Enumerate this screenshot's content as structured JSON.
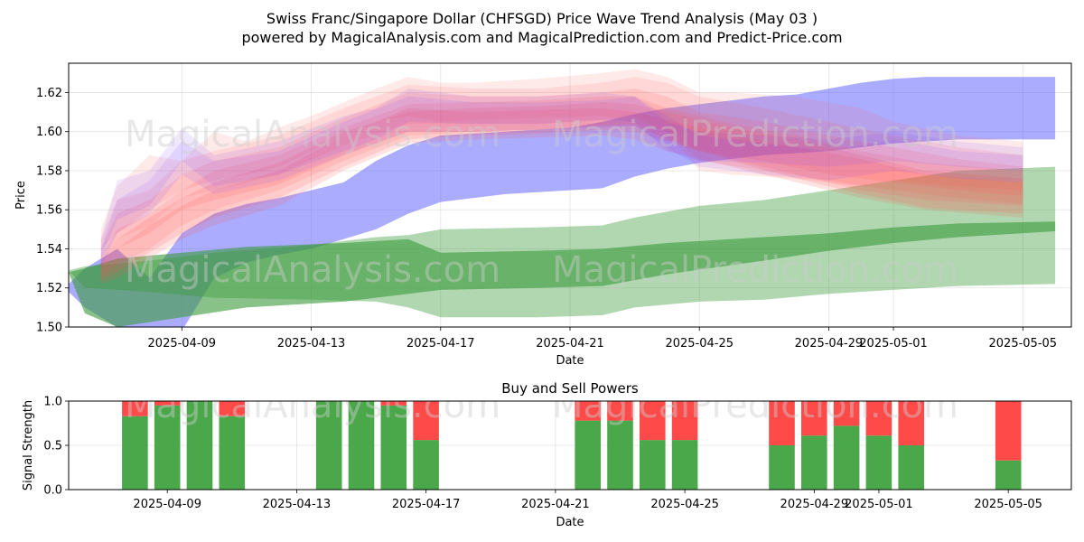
{
  "figure": {
    "title_line1": "Swiss Franc/Singapore Dollar (CHFSGD) Price Wave Trend Analysis (May 03 )",
    "title_line2": "powered by MagicalAnalysis.com and MagicalPrediction.com and Predict-Price.com",
    "watermarks": [
      "MagicalAnalysis.com",
      "MagicalPrediction.com"
    ]
  },
  "chart_data": [
    {
      "type": "area",
      "xlabel": "Date",
      "ylabel": "Price",
      "ylim": [
        1.5,
        1.635
      ],
      "xlim": [
        "2025-04-05T12:00",
        "2025-05-06T12:00"
      ],
      "x_ticks": [
        "2025-04-09",
        "2025-04-13",
        "2025-04-17",
        "2025-04-21",
        "2025-04-25",
        "2025-04-29",
        "2025-05-01",
        "2025-05-05"
      ],
      "y_ticks": [
        1.5,
        1.52,
        1.54,
        1.56,
        1.58,
        1.6,
        1.62
      ],
      "grid": true,
      "colors": {
        "blue": "#5a5aff",
        "green": "#3a9a3a",
        "red": "#ff5050"
      },
      "series": [
        {
          "color": "blue",
          "opacity": 0.5,
          "x": [
            "2025-04-05T12:00",
            "2025-04-06",
            "2025-04-07",
            "2025-04-08",
            "2025-04-09",
            "2025-04-10",
            "2025-04-11",
            "2025-04-12",
            "2025-04-13",
            "2025-04-14",
            "2025-04-15",
            "2025-04-16",
            "2025-04-17",
            "2025-04-18",
            "2025-04-19",
            "2025-04-20",
            "2025-04-21",
            "2025-04-22",
            "2025-04-23",
            "2025-04-24",
            "2025-04-25",
            "2025-04-26",
            "2025-04-27",
            "2025-04-28",
            "2025-04-29",
            "2025-04-30",
            "2025-05-01",
            "2025-05-02",
            "2025-05-03",
            "2025-05-04",
            "2025-05-05",
            "2025-05-06"
          ],
          "upper": [
            1.522,
            1.53,
            1.54,
            1.525,
            1.548,
            1.558,
            1.563,
            1.566,
            1.57,
            1.574,
            1.585,
            1.593,
            1.598,
            1.599,
            1.6,
            1.601,
            1.602,
            1.605,
            1.609,
            1.612,
            1.614,
            1.616,
            1.618,
            1.619,
            1.622,
            1.625,
            1.627,
            1.628,
            1.628,
            1.628,
            1.628,
            1.628
          ],
          "lower": [
            1.518,
            1.51,
            1.5,
            1.5,
            1.498,
            1.525,
            1.533,
            1.537,
            1.54,
            1.545,
            1.55,
            1.558,
            1.564,
            1.566,
            1.568,
            1.569,
            1.57,
            1.571,
            1.577,
            1.581,
            1.584,
            1.586,
            1.588,
            1.589,
            1.59,
            1.592,
            1.594,
            1.595,
            1.596,
            1.596,
            1.596,
            1.596
          ]
        },
        {
          "color": "green",
          "opacity": 0.4,
          "x": [
            "2025-04-05T12:00",
            "2025-04-06",
            "2025-04-08",
            "2025-04-10",
            "2025-04-13",
            "2025-04-15",
            "2025-04-16",
            "2025-04-17",
            "2025-04-20",
            "2025-04-22",
            "2025-04-23",
            "2025-04-25",
            "2025-04-27",
            "2025-04-29",
            "2025-05-01",
            "2025-05-03",
            "2025-05-06"
          ],
          "upper": [
            1.529,
            1.531,
            1.534,
            1.538,
            1.542,
            1.546,
            1.547,
            1.55,
            1.551,
            1.552,
            1.556,
            1.562,
            1.565,
            1.57,
            1.575,
            1.58,
            1.582
          ],
          "lower": [
            1.529,
            1.52,
            1.518,
            1.515,
            1.514,
            1.513,
            1.51,
            1.505,
            1.505,
            1.506,
            1.51,
            1.513,
            1.514,
            1.517,
            1.519,
            1.521,
            1.522
          ]
        },
        {
          "color": "green",
          "opacity": 0.6,
          "x": [
            "2025-04-05T12:00",
            "2025-04-06",
            "2025-04-07",
            "2025-04-09",
            "2025-04-11",
            "2025-04-14",
            "2025-04-16",
            "2025-04-17",
            "2025-04-20",
            "2025-04-22",
            "2025-04-24",
            "2025-04-27",
            "2025-04-29",
            "2025-05-01",
            "2025-05-03",
            "2025-05-06"
          ],
          "upper": [
            1.528,
            1.53,
            1.535,
            1.538,
            1.541,
            1.543,
            1.545,
            1.538,
            1.539,
            1.54,
            1.543,
            1.546,
            1.548,
            1.551,
            1.553,
            1.554
          ],
          "lower": [
            1.528,
            1.507,
            1.5,
            1.505,
            1.51,
            1.513,
            1.517,
            1.519,
            1.52,
            1.521,
            1.527,
            1.534,
            1.539,
            1.543,
            1.546,
            1.549
          ]
        }
      ],
      "red_bands": [
        {
          "opacity": 0.12,
          "x": [
            "2025-04-06T12:00",
            "2025-04-07",
            "2025-04-08",
            "2025-04-09",
            "2025-04-10",
            "2025-04-11",
            "2025-04-12",
            "2025-04-13",
            "2025-04-14",
            "2025-04-15",
            "2025-04-16",
            "2025-04-17",
            "2025-04-18",
            "2025-04-20",
            "2025-04-22",
            "2025-04-23",
            "2025-04-24",
            "2025-04-25",
            "2025-04-26",
            "2025-04-28",
            "2025-04-30",
            "2025-05-01",
            "2025-05-03",
            "2025-05-05"
          ],
          "upper": [
            1.55,
            1.572,
            1.588,
            1.585,
            1.6,
            1.595,
            1.602,
            1.608,
            1.615,
            1.622,
            1.628,
            1.625,
            1.625,
            1.627,
            1.63,
            1.632,
            1.628,
            1.62,
            1.62,
            1.618,
            1.612,
            1.605,
            1.598,
            1.595
          ],
          "lower": [
            1.54,
            1.548,
            1.56,
            1.57,
            1.575,
            1.578,
            1.582,
            1.59,
            1.598,
            1.605,
            1.608,
            1.605,
            1.606,
            1.607,
            1.608,
            1.605,
            1.6,
            1.58,
            1.578,
            1.576,
            1.572,
            1.575,
            1.572,
            1.57
          ]
        },
        {
          "opacity": 0.12,
          "x": [
            "2025-04-06T12:00",
            "2025-04-07",
            "2025-04-08",
            "2025-04-09",
            "2025-04-10",
            "2025-04-12",
            "2025-04-14",
            "2025-04-16",
            "2025-04-18",
            "2025-04-20",
            "2025-04-22",
            "2025-04-23",
            "2025-04-24",
            "2025-04-25",
            "2025-04-27",
            "2025-04-29",
            "2025-05-01",
            "2025-05-03",
            "2025-05-05"
          ],
          "upper": [
            1.545,
            1.565,
            1.57,
            1.585,
            1.59,
            1.598,
            1.612,
            1.624,
            1.622,
            1.622,
            1.625,
            1.628,
            1.625,
            1.618,
            1.612,
            1.605,
            1.598,
            1.592,
            1.588
          ],
          "lower": [
            1.535,
            1.545,
            1.552,
            1.566,
            1.57,
            1.578,
            1.593,
            1.604,
            1.604,
            1.604,
            1.606,
            1.608,
            1.6,
            1.585,
            1.58,
            1.575,
            1.57,
            1.566,
            1.563
          ]
        },
        {
          "opacity": 0.14,
          "x": [
            "2025-04-06T12:00",
            "2025-04-07",
            "2025-04-08",
            "2025-04-09",
            "2025-04-10",
            "2025-04-12",
            "2025-04-14",
            "2025-04-16",
            "2025-04-18",
            "2025-04-20",
            "2025-04-22",
            "2025-04-23",
            "2025-04-24",
            "2025-04-25",
            "2025-04-27",
            "2025-04-29",
            "2025-05-01",
            "2025-05-03",
            "2025-05-05"
          ],
          "upper": [
            1.54,
            1.558,
            1.565,
            1.578,
            1.585,
            1.592,
            1.607,
            1.62,
            1.618,
            1.618,
            1.62,
            1.622,
            1.618,
            1.61,
            1.605,
            1.598,
            1.592,
            1.586,
            1.582
          ],
          "lower": [
            1.53,
            1.54,
            1.548,
            1.56,
            1.565,
            1.573,
            1.588,
            1.6,
            1.6,
            1.601,
            1.603,
            1.604,
            1.596,
            1.59,
            1.585,
            1.578,
            1.574,
            1.57,
            1.567
          ]
        },
        {
          "opacity": 0.14,
          "x": [
            "2025-04-06T12:00",
            "2025-04-07",
            "2025-04-08",
            "2025-04-09",
            "2025-04-10",
            "2025-04-12",
            "2025-04-14",
            "2025-04-16",
            "2025-04-18",
            "2025-04-20",
            "2025-04-22",
            "2025-04-23",
            "2025-04-24",
            "2025-04-26",
            "2025-04-28",
            "2025-04-30",
            "2025-05-02",
            "2025-05-05"
          ],
          "upper": [
            1.536,
            1.55,
            1.558,
            1.57,
            1.58,
            1.588,
            1.602,
            1.614,
            1.615,
            1.616,
            1.618,
            1.618,
            1.612,
            1.604,
            1.598,
            1.59,
            1.584,
            1.58
          ],
          "lower": [
            1.526,
            1.532,
            1.54,
            1.552,
            1.56,
            1.57,
            1.585,
            1.598,
            1.6,
            1.601,
            1.603,
            1.603,
            1.596,
            1.586,
            1.578,
            1.57,
            1.565,
            1.562
          ]
        },
        {
          "opacity": 0.16,
          "x": [
            "2025-04-06T12:00",
            "2025-04-07",
            "2025-04-08",
            "2025-04-09",
            "2025-04-10",
            "2025-04-12",
            "2025-04-14",
            "2025-04-16",
            "2025-04-18",
            "2025-04-20",
            "2025-04-22",
            "2025-04-23",
            "2025-04-24",
            "2025-04-26",
            "2025-04-28",
            "2025-04-30",
            "2025-05-02",
            "2025-05-05"
          ],
          "upper": [
            1.534,
            1.545,
            1.556,
            1.566,
            1.574,
            1.584,
            1.6,
            1.61,
            1.612,
            1.613,
            1.615,
            1.614,
            1.61,
            1.602,
            1.596,
            1.588,
            1.58,
            1.576
          ],
          "lower": [
            1.524,
            1.528,
            1.538,
            1.548,
            1.556,
            1.566,
            1.582,
            1.596,
            1.598,
            1.599,
            1.601,
            1.6,
            1.595,
            1.585,
            1.576,
            1.568,
            1.561,
            1.558
          ]
        },
        {
          "opacity": 0.16,
          "x": [
            "2025-04-06T12:00",
            "2025-04-07",
            "2025-04-08",
            "2025-04-09",
            "2025-04-10",
            "2025-04-12",
            "2025-04-14",
            "2025-04-16",
            "2025-04-18",
            "2025-04-20",
            "2025-04-22",
            "2025-04-23",
            "2025-04-24",
            "2025-04-26",
            "2025-04-28",
            "2025-04-30",
            "2025-05-02",
            "2025-05-05"
          ],
          "upper": [
            1.532,
            1.54,
            1.552,
            1.562,
            1.57,
            1.58,
            1.598,
            1.612,
            1.61,
            1.611,
            1.612,
            1.61,
            1.606,
            1.598,
            1.592,
            1.586,
            1.578,
            1.574
          ],
          "lower": [
            1.522,
            1.525,
            1.535,
            1.545,
            1.552,
            1.562,
            1.58,
            1.594,
            1.596,
            1.597,
            1.598,
            1.596,
            1.59,
            1.582,
            1.574,
            1.566,
            1.56,
            1.556
          ]
        }
      ],
      "purple_bands": [
        {
          "opacity": 0.12,
          "x": [
            "2025-04-06T12:00",
            "2025-04-07",
            "2025-04-08",
            "2025-04-09",
            "2025-04-10",
            "2025-04-12",
            "2025-04-14",
            "2025-04-15",
            "2025-04-16",
            "2025-04-18",
            "2025-04-20",
            "2025-04-22",
            "2025-04-23",
            "2025-04-24",
            "2025-04-25",
            "2025-04-27",
            "2025-04-29",
            "2025-05-01",
            "2025-05-03",
            "2025-05-05"
          ],
          "upper": [
            1.545,
            1.575,
            1.58,
            1.602,
            1.588,
            1.595,
            1.608,
            1.612,
            1.622,
            1.618,
            1.618,
            1.62,
            1.618,
            1.605,
            1.6,
            1.598,
            1.596,
            1.6,
            1.595,
            1.592
          ],
          "lower": [
            1.535,
            1.555,
            1.562,
            1.585,
            1.572,
            1.578,
            1.59,
            1.596,
            1.605,
            1.604,
            1.604,
            1.606,
            1.605,
            1.59,
            1.585,
            1.584,
            1.582,
            1.585,
            1.582,
            1.58
          ]
        },
        {
          "opacity": 0.12,
          "x": [
            "2025-04-06T12:00",
            "2025-04-07",
            "2025-04-08",
            "2025-04-09",
            "2025-04-10",
            "2025-04-12",
            "2025-04-14",
            "2025-04-16",
            "2025-04-18",
            "2025-04-20",
            "2025-04-22",
            "2025-04-23",
            "2025-04-24",
            "2025-04-25",
            "2025-04-27",
            "2025-04-29",
            "2025-05-01",
            "2025-05-03",
            "2025-05-05"
          ],
          "upper": [
            1.54,
            1.565,
            1.575,
            1.595,
            1.585,
            1.59,
            1.605,
            1.618,
            1.615,
            1.615,
            1.616,
            1.618,
            1.608,
            1.598,
            1.594,
            1.59,
            1.596,
            1.59,
            1.588
          ],
          "lower": [
            1.53,
            1.548,
            1.558,
            1.578,
            1.568,
            1.575,
            1.588,
            1.6,
            1.6,
            1.601,
            1.602,
            1.603,
            1.592,
            1.582,
            1.578,
            1.575,
            1.58,
            1.576,
            1.574
          ]
        }
      ]
    },
    {
      "type": "bar",
      "stacked": true,
      "title": "Buy and Sell Powers",
      "xlabel": "Date",
      "ylabel": "Signal Strength",
      "ylim": [
        0,
        1.0
      ],
      "y_ticks": [
        0.0,
        0.5,
        1.0
      ],
      "x_ticks": [
        "2025-04-09",
        "2025-04-13",
        "2025-04-17",
        "2025-04-21",
        "2025-04-25",
        "2025-04-29",
        "2025-05-01",
        "2025-05-05"
      ],
      "grid": true,
      "colors": {
        "buy": "#4aa84a",
        "sell": "#ff4a4a"
      },
      "categories": [
        "2025-04-08",
        "2025-04-09",
        "2025-04-10",
        "2025-04-11",
        "2025-04-14",
        "2025-04-15",
        "2025-04-16",
        "2025-04-17",
        "2025-04-22",
        "2025-04-23",
        "2025-04-24",
        "2025-04-25",
        "2025-04-28",
        "2025-04-29",
        "2025-04-30",
        "2025-05-01",
        "2025-05-02",
        "2025-05-05"
      ],
      "series": [
        {
          "key": "buy",
          "values": [
            0.83,
            0.95,
            1.0,
            0.83,
            1.0,
            1.0,
            0.95,
            0.56,
            0.78,
            0.78,
            0.56,
            0.56,
            0.5,
            0.61,
            0.72,
            0.61,
            0.5,
            0.33
          ]
        },
        {
          "key": "sell",
          "values": [
            0.17,
            0.05,
            0.0,
            0.17,
            0.0,
            0.0,
            0.05,
            0.44,
            0.22,
            0.22,
            0.44,
            0.44,
            0.5,
            0.39,
            0.28,
            0.39,
            0.5,
            0.67
          ]
        }
      ]
    }
  ]
}
